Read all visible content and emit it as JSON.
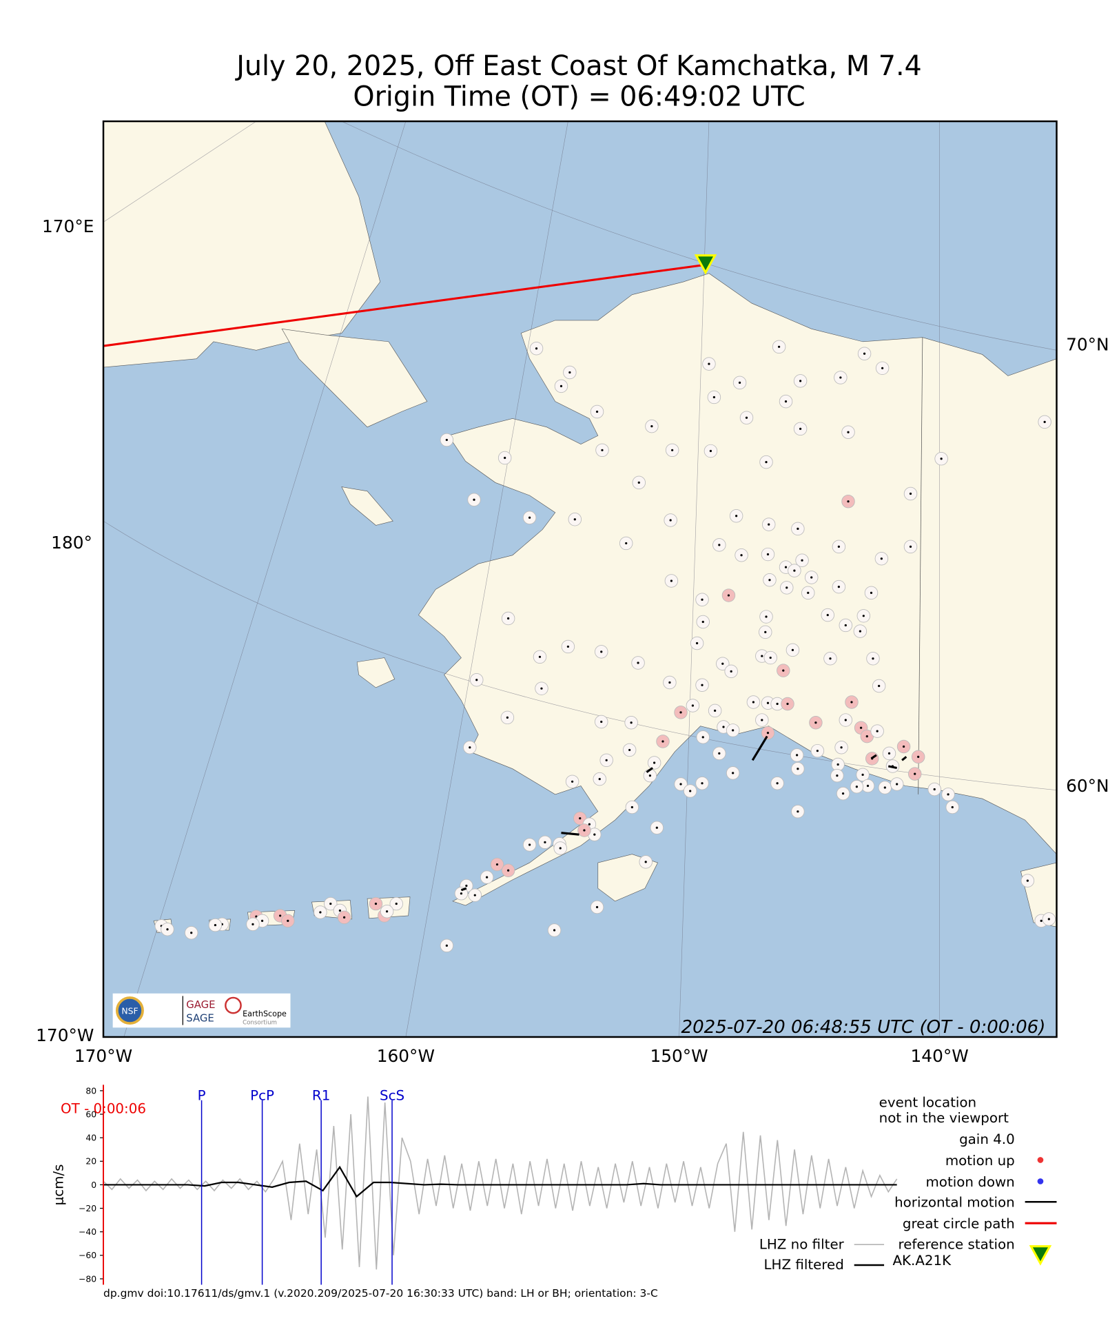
{
  "title": "July 20, 2025, Off East Coast Of Kamchatka, M 7.4",
  "subtitle": "Origin Time (OT) = 06:49:02 UTC",
  "map": {
    "lat_labels_left": [
      "170°E",
      "180°",
      "170°W"
    ],
    "lat_labels_right": [
      "70°N",
      "60°N"
    ],
    "lon_labels": [
      "170°W",
      "160°W",
      "150°W",
      "140°W"
    ],
    "timestamp": "2025-07-20 06:48:55 UTC (OT - 0:00:06)",
    "logos": [
      "NSF",
      "GAGE",
      "SAGE",
      "EarthScope",
      "Consortium"
    ]
  },
  "chart_data": {
    "type": "line",
    "y_label": "μcm/s",
    "ylim": [
      -85,
      85
    ],
    "yticks": [
      80,
      60,
      40,
      20,
      0,
      {
        "value": -20,
        "label": "−20"
      },
      {
        "value": -40,
        "label": "−40"
      },
      {
        "value": -60,
        "label": "−60"
      },
      {
        "value": -80,
        "label": "−80"
      }
    ],
    "origin_label": "OT - 0:00:06",
    "phases": [
      "P",
      "PcP",
      "R1",
      "ScS"
    ],
    "series": [
      {
        "name": "LHZ no filter",
        "color": "#b4b4b4",
        "values": [
          3,
          -4,
          5,
          -3,
          4,
          -5,
          3,
          -4,
          5,
          -3,
          4,
          -4,
          3,
          -5,
          4,
          -3,
          5,
          -4,
          3,
          -6,
          5,
          20,
          -30,
          35,
          -25,
          30,
          -45,
          50,
          -55,
          60,
          -70,
          75,
          -72,
          70,
          -60,
          40,
          20,
          -25,
          22,
          -18,
          25,
          -20,
          18,
          -22,
          20,
          -18,
          22,
          -20,
          18,
          -25,
          20,
          -18,
          22,
          -20,
          18,
          -22,
          20,
          -18,
          15,
          -20,
          18,
          -15,
          20,
          -18,
          15,
          -20,
          18,
          -15,
          20,
          -18,
          15,
          -20,
          18,
          35,
          -40,
          45,
          -38,
          42,
          -30,
          38,
          -35,
          30,
          -25,
          25,
          -20,
          22,
          -18,
          15,
          -20,
          12,
          -10,
          8,
          -6,
          5
        ]
      },
      {
        "name": "LHZ filtered",
        "color": "#000000",
        "values": [
          0,
          0,
          0,
          0,
          0,
          0,
          -1,
          2,
          2,
          0,
          -2,
          2,
          3,
          -5,
          15,
          -10,
          2,
          2,
          1,
          0,
          0.5,
          0,
          0,
          0,
          0,
          0,
          0,
          0,
          0,
          0,
          0,
          0,
          1,
          0,
          0,
          0,
          0,
          0,
          0,
          0,
          0,
          0,
          0,
          0,
          0,
          0,
          0,
          0
        ]
      }
    ]
  },
  "legend": {
    "event_note": [
      "event location",
      "not in the viewport"
    ],
    "gain": "gain  4.0",
    "items": [
      "motion up",
      "motion down",
      "horizontal motion",
      "great circle path",
      "reference station"
    ],
    "station": "AK.A21K"
  },
  "footer": "dp.gmv doi:10.17611/ds/gmv.1 (v.2020.209/2025-07-20 16:30:33 UTC) band: LH or BH; orientation: 3-C"
}
